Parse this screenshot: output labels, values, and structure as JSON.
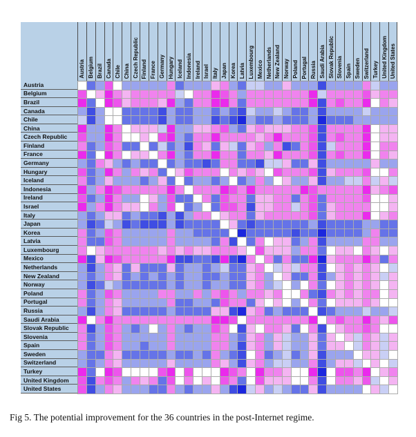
{
  "figure": {
    "caption": "Fig 5. The potential improvement for the 36 countries in the post-Internet regime."
  },
  "colors": {
    "page_bg": "#ffffff",
    "header_bg": "#b9d1e7",
    "header_separator": "#4a4a4a",
    "row_separator": "#5a5a5a",
    "grid_line": "#ababab"
  },
  "chart_data": {
    "type": "heatmap",
    "title": "Fig 5. The potential improvement for the 36 countries in the post-Internet regime.",
    "legend": "none shown; diagonal cells are white (self-comparison)",
    "row_labels": [
      "Austria",
      "Belgium",
      "Brazil",
      "Canada",
      "Chile",
      "China",
      "Czech Republic",
      "Finland",
      "France",
      "Germany",
      "Hungary",
      "Iceland",
      "Indonesia",
      "Ireland",
      "Israel",
      "Italy",
      "Japan",
      "Korea",
      "Latvia",
      "Luxembourg",
      "Mexico",
      "Netherlands",
      "New Zealand",
      "Norway",
      "Poland",
      "Portugal",
      "Russia",
      "Saudi Arabia",
      "Slovak Republic",
      "Slovenia",
      "Spain",
      "Sweden",
      "Switzerland",
      "Turkey",
      "United Kingdom",
      "United States"
    ],
    "col_labels": [
      "Austria",
      "Belgium",
      "Brazil",
      "Canada",
      "Chile",
      "China",
      "Czech Republic",
      "Finland",
      "France",
      "Germany",
      "Hungary",
      "Iceland",
      "Indonesia",
      "Ireland",
      "Israel",
      "Italy",
      "Japan",
      "Korea",
      "Latvia",
      "Luxembourg",
      "Mexico",
      "Netherlands",
      "New Zealand",
      "Norway",
      "Poland",
      "Portugal",
      "Russia",
      "Saudi Arabia",
      "Slovak Republic",
      "Slovenia",
      "Spain",
      "Sweden",
      "Switzerland",
      "Turkey",
      "United Kingdom",
      "United States"
    ],
    "palette": {
      "0": "#ffffff",
      "1": "#c9cff5",
      "2": "#9aa4ee",
      "3": "#6573e8",
      "4": "#3f4de3",
      "5": "#1b27de",
      "6": "#f4b4f2",
      "7": "#f083ee",
      "8": "#ed55ec",
      "9": "#ea2aec"
    },
    "palette_meaning": "0=white, 1-5=increasingly saturated blue, 6-9=increasingly saturated magenta (as seen in pixels)",
    "matrix": [
      "032802222273222672311226222422227122",
      "806976777771077987277777779177778677",
      "930986777692377997377777779478779076",
      "242003333423322323412212332422221222",
      "142003333423322434523323332533322222",
      "922970666192266782367666778477779066",
      "822970060892377977776797778478779066",
      "732873303132476361367274378417779077",
      "930970660792377977377697778478779076",
      "237623233032334377334116336422222622",
      "832972767306877707676087778467778007",
      "732622232630322320327206226422117161",
      "927987777797077798797777798777779678",
      "832972206283307387736677378377778006",
      "927976607280320388746677178367777006",
      "232663233424277067736777778367779067",
      "243124344424333306343333332433332233",
      "732872222272233330533333433533332733",
      "733872222272222374037066327422227722",
      "706777777676766777608666277306607606",
      "946987777794433494570737339567779737",
      "242763633363223213367016177406767601",
      "232763232323223323367206337426767616",
      "243123333323223223367210207306767606",
      "732872222772272787277670073476767706",
      "732762222273322387736060207306667600",
      "242763333323333664567323330432221221",
      "907977777777777998077777779078779768",
      "742872320272322870460776307406778700",
      "732872222272222772367261226360617616",
      "732872232272222772467261226366017616",
      "233763333323323723407321326422206610",
      "232762222262222762467211227426610601",
      "930980000890800098709776009508879067",
      "847872767380706087308666007407768106",
      "842762223372322624516212336422220610"
    ]
  }
}
